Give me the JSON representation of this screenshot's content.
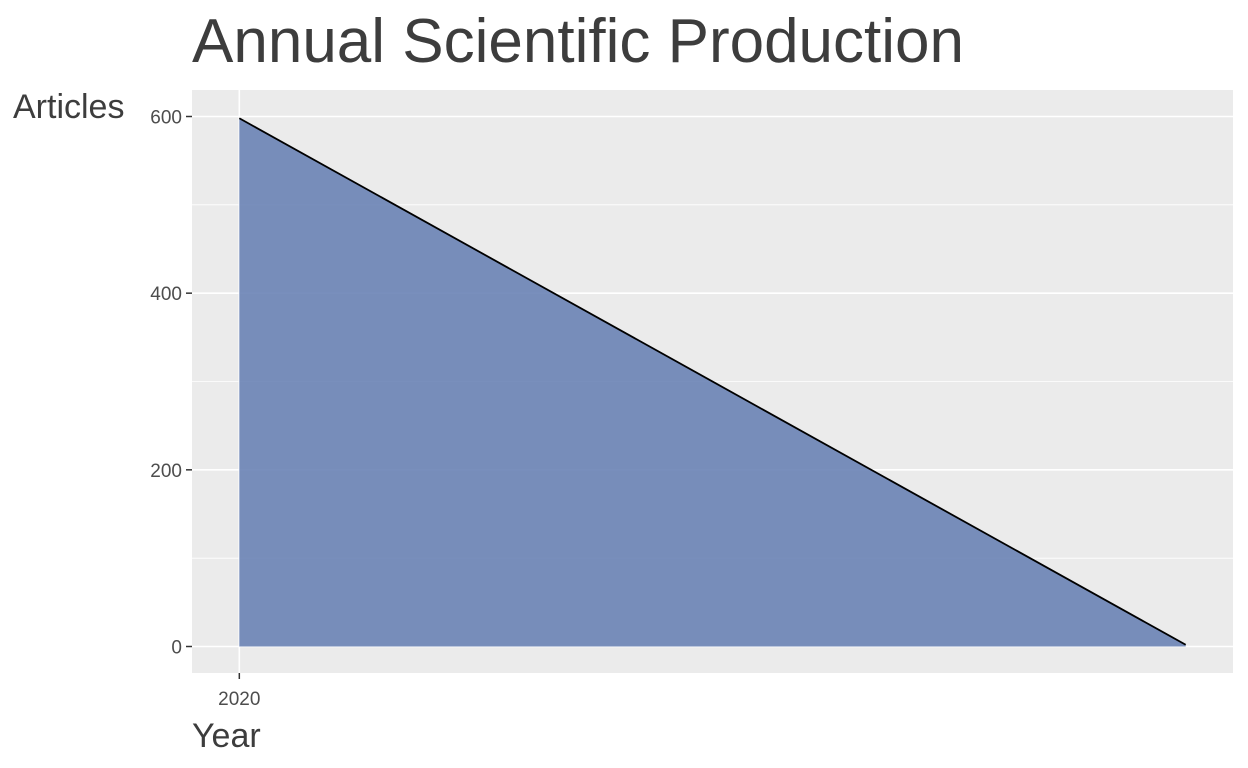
{
  "chart_data": {
    "type": "area",
    "title": "Annual Scientific Production",
    "xlabel": "Year",
    "ylabel": "Articles",
    "x": [
      2020,
      2021
    ],
    "y": [
      598,
      2
    ],
    "x_ticks": [
      "2020"
    ],
    "y_ticks": [
      0,
      200,
      400,
      600
    ],
    "xlim": [
      2019.95,
      2021.05
    ],
    "ylim": [
      -30,
      630
    ],
    "grid": true,
    "legend": "none",
    "colors": {
      "fill": "#6680b3",
      "line": "#000000",
      "panel": "#ebebeb",
      "gridline": "#ffffff",
      "text": "#3d3d3d"
    }
  }
}
